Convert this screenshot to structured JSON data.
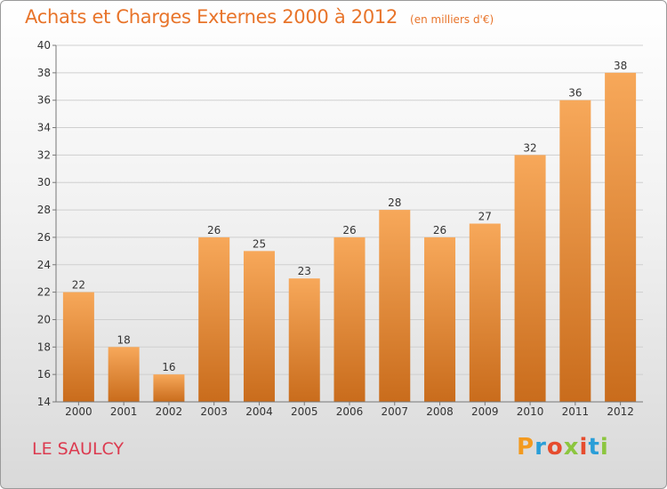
{
  "header": {
    "title": "Achats et Charges Externes 2000 à 2012",
    "subtitle": "(en milliers d'€)"
  },
  "footer": {
    "location": "LE SAULCY",
    "brand": "Proxiti",
    "brand_colors": [
      "#f39a1f",
      "#2a9ed8",
      "#e64c2e",
      "#8cc63f",
      "#e64c2e",
      "#2a9ed8",
      "#8cc63f"
    ]
  },
  "chart_data": {
    "type": "bar",
    "title": "Achats et Charges Externes 2000 à 2012",
    "subtitle": "(en milliers d'€)",
    "categories": [
      "2000",
      "2001",
      "2002",
      "2003",
      "2004",
      "2005",
      "2006",
      "2007",
      "2008",
      "2009",
      "2010",
      "2011",
      "2012"
    ],
    "values": [
      22,
      18,
      16,
      26,
      25,
      23,
      26,
      28,
      26,
      27,
      32,
      36,
      38
    ],
    "ylim": [
      14,
      40
    ],
    "yticks": [
      14,
      16,
      18,
      20,
      22,
      24,
      26,
      28,
      30,
      32,
      34,
      36,
      38,
      40
    ],
    "xlabel": "",
    "ylabel": "",
    "grid": true,
    "data_labels": true,
    "colors": {
      "bar_top": "#f7a85a",
      "bar_bottom": "#c96c1c",
      "grid": "#cfcfcf",
      "axis": "#777777",
      "text": "#333333"
    }
  }
}
